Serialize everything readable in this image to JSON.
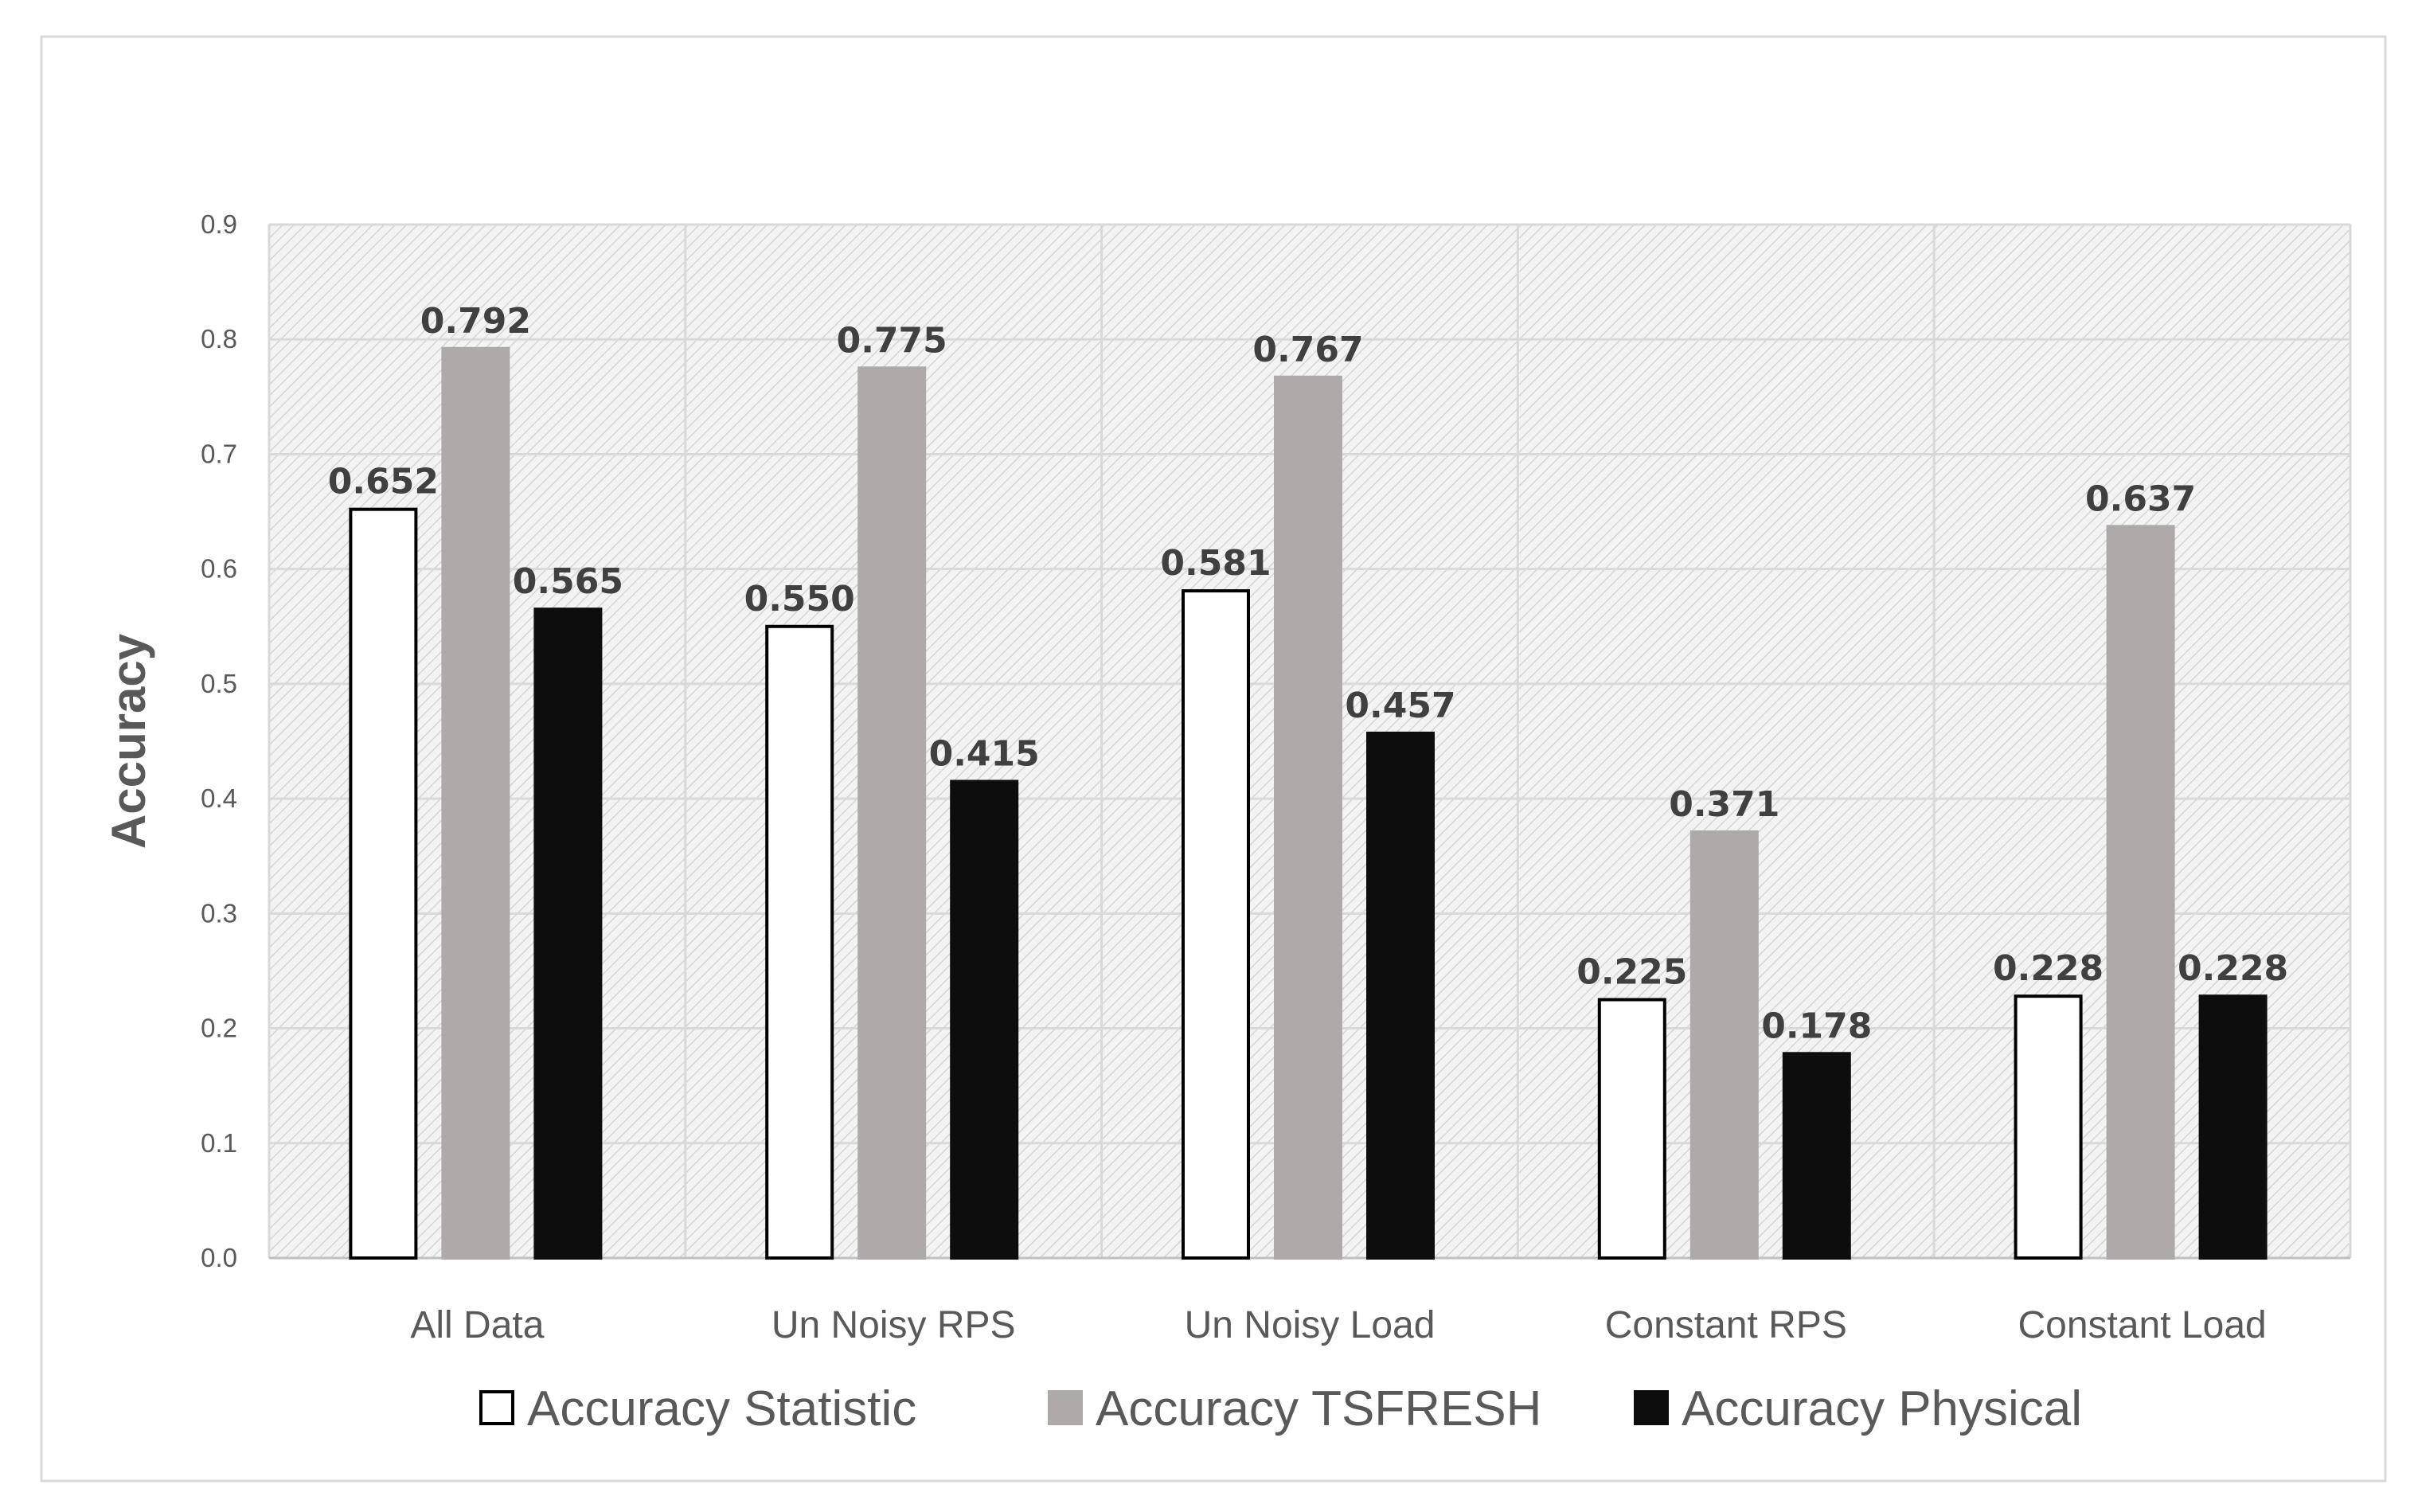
{
  "chart_data": {
    "type": "bar",
    "title": "",
    "xlabel": "",
    "ylabel": "Accuracy",
    "ylim": [
      0,
      0.9
    ],
    "yticks": [
      "0.0",
      "0.1",
      "0.2",
      "0.3",
      "0.4",
      "0.5",
      "0.6",
      "0.7",
      "0.8",
      "0.9"
    ],
    "categories": [
      "All Data",
      "Un Noisy RPS",
      "Un Noisy Load",
      "Constant RPS",
      "Constant Load"
    ],
    "series": [
      {
        "name": "Accuracy Statistic",
        "color": "#ffffff",
        "stroke": "#000000",
        "values": [
          0.652,
          0.55,
          0.581,
          0.225,
          0.228
        ],
        "labels": [
          "0.652",
          "0.550",
          "0.581",
          "0.225",
          "0.228"
        ]
      },
      {
        "name": "Accuracy TSFRESH",
        "color": "#aeaaaa",
        "stroke": "#aeaaaa",
        "values": [
          0.792,
          0.775,
          0.767,
          0.371,
          0.637
        ],
        "labels": [
          "0.792",
          "0.775",
          "0.767",
          "0.371",
          "0.637"
        ]
      },
      {
        "name": "Accuracy Physical",
        "color": "#0d0d0d",
        "stroke": "#0d0d0d",
        "values": [
          0.565,
          0.415,
          0.457,
          0.178,
          0.228
        ],
        "labels": [
          "0.565",
          "0.415",
          "0.457",
          "0.178",
          "0.228"
        ]
      }
    ],
    "grid": true,
    "legend_position": "bottom"
  }
}
